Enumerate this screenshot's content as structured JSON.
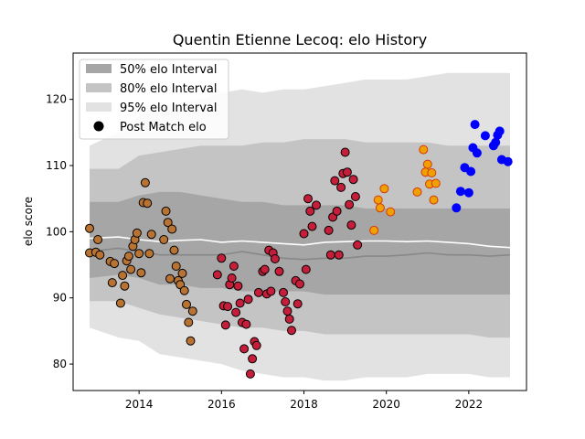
{
  "chart_data": {
    "type": "scatter",
    "title": "Quentin Etienne Lecoq: elo History",
    "xlabel": "",
    "ylabel": "elo score",
    "xlim": [
      2012.4,
      2023.4
    ],
    "ylim": [
      76,
      127
    ],
    "xticks": [
      2014,
      2016,
      2018,
      2020,
      2022
    ],
    "yticks": [
      80,
      90,
      100,
      110,
      120
    ],
    "legend": {
      "position": "top-left",
      "entries": [
        "50% elo Interval",
        "80% elo Interval",
        "95% elo Interval",
        "Post Match elo"
      ]
    },
    "colors": {
      "band50": "#a6a6a6",
      "band80": "#c4c4c4",
      "band95": "#e2e2e2",
      "median": "#888888",
      "mean": "#ffffff"
    },
    "bands": {
      "x": [
        2012.8,
        2013.5,
        2014.0,
        2014.5,
        2015.0,
        2015.5,
        2016.0,
        2016.5,
        2017.0,
        2017.5,
        2018.0,
        2018.5,
        2019.0,
        2019.5,
        2020.0,
        2020.5,
        2021.0,
        2021.5,
        2022.0,
        2022.5,
        2023.0
      ],
      "lo95": [
        85.5,
        84.0,
        83.5,
        81.5,
        81.0,
        80.5,
        80.0,
        79.0,
        78.5,
        78.0,
        78.0,
        77.5,
        77.5,
        78.0,
        78.0,
        78.0,
        78.5,
        78.5,
        78.5,
        78.0,
        78.0
      ],
      "hi95": [
        113.0,
        115.0,
        117.5,
        119.0,
        119.5,
        120.0,
        121.0,
        121.5,
        121.0,
        121.5,
        121.5,
        122.0,
        122.5,
        123.0,
        123.0,
        123.0,
        123.5,
        124.0,
        124.0,
        124.0,
        124.0
      ],
      "lo80": [
        89.5,
        89.5,
        88.5,
        87.5,
        87.0,
        86.5,
        86.0,
        85.5,
        85.5,
        85.0,
        85.0,
        84.5,
        84.5,
        84.5,
        84.5,
        84.5,
        84.5,
        84.5,
        84.5,
        84.0,
        84.0
      ],
      "hi80": [
        109.5,
        109.5,
        111.5,
        112.0,
        112.5,
        113.0,
        113.0,
        113.0,
        113.5,
        113.5,
        114.0,
        114.0,
        114.0,
        113.5,
        113.5,
        113.5,
        113.5,
        113.0,
        113.0,
        113.0,
        113.0
      ],
      "lo50": [
        93.0,
        93.5,
        93.0,
        92.0,
        92.0,
        91.5,
        91.5,
        91.0,
        91.0,
        91.0,
        91.0,
        90.5,
        90.5,
        90.5,
        90.5,
        90.5,
        90.5,
        90.5,
        90.5,
        90.5,
        90.5
      ],
      "hi50": [
        104.5,
        104.5,
        105.5,
        106.0,
        106.0,
        105.5,
        105.0,
        104.5,
        104.5,
        104.0,
        104.0,
        104.0,
        104.0,
        103.5,
        103.5,
        103.5,
        103.5,
        103.5,
        103.5,
        103.5,
        103.5
      ],
      "median": [
        97.0,
        97.5,
        97.0,
        96.5,
        96.5,
        96.5,
        96.5,
        97.0,
        96.5,
        96.0,
        95.8,
        96.0,
        96.0,
        96.3,
        96.3,
        96.5,
        96.8,
        96.5,
        96.5,
        96.3,
        96.5
      ],
      "mean": [
        99.0,
        99.2,
        98.8,
        98.5,
        98.7,
        98.8,
        98.4,
        98.6,
        98.4,
        98.2,
        98.0,
        98.4,
        98.5,
        98.6,
        98.6,
        98.5,
        98.6,
        98.4,
        98.2,
        97.8,
        97.6
      ]
    },
    "series": [
      {
        "color": "#b87333",
        "edge": "#000000",
        "x": [
          2012.8,
          2012.8,
          2012.95,
          2013.0,
          2013.05,
          2013.3,
          2013.35,
          2013.4,
          2013.55,
          2013.6,
          2013.65,
          2013.7,
          2013.75,
          2013.8,
          2013.85,
          2013.9,
          2013.95,
          2014.0,
          2014.05,
          2014.1,
          2014.15,
          2014.2,
          2014.25,
          2014.3,
          2014.6,
          2014.65,
          2014.7,
          2014.75,
          2014.8,
          2014.85,
          2014.9,
          2014.95,
          2015.0,
          2015.05,
          2015.1,
          2015.15,
          2015.2,
          2015.25,
          2015.3
        ],
        "y": [
          100.5,
          96.8,
          96.9,
          98.8,
          96.5,
          95.5,
          92.3,
          95.2,
          89.2,
          93.4,
          91.8,
          95.6,
          96.3,
          94.3,
          97.8,
          98.8,
          99.8,
          96.7,
          93.8,
          104.4,
          107.4,
          104.3,
          96.7,
          99.6,
          98.8,
          103.1,
          101.4,
          92.9,
          100.4,
          97.2,
          94.8,
          92.6,
          92.0,
          93.7,
          91.1,
          89.0,
          86.3,
          83.5,
          88.0
        ]
      },
      {
        "color": "#c41e3a",
        "edge": "#000000",
        "x": [
          2015.9,
          2016.0,
          2016.05,
          2016.1,
          2016.15,
          2016.2,
          2016.25,
          2016.3,
          2016.35,
          2016.4,
          2016.45,
          2016.5,
          2016.55,
          2016.6,
          2016.65,
          2016.7,
          2016.75,
          2016.8,
          2016.85,
          2016.9,
          2017.0,
          2017.05,
          2017.1,
          2017.15,
          2017.2,
          2017.25,
          2017.3,
          2017.4,
          2017.5,
          2017.55,
          2017.6,
          2017.65,
          2017.7,
          2017.8,
          2017.85,
          2017.9,
          2018.0,
          2018.05,
          2018.1,
          2018.15,
          2018.2,
          2018.3,
          2018.6,
          2018.65,
          2018.7,
          2018.75,
          2018.8,
          2018.85,
          2018.9,
          2018.95,
          2019.0,
          2019.05,
          2019.1,
          2019.15,
          2019.2,
          2019.25,
          2019.3
        ],
        "y": [
          93.5,
          96.0,
          88.8,
          85.9,
          88.7,
          92.0,
          93.0,
          94.8,
          87.8,
          91.8,
          89.2,
          86.3,
          82.3,
          86.0,
          89.8,
          78.5,
          80.8,
          83.4,
          82.8,
          90.8,
          94.0,
          94.3,
          90.6,
          97.2,
          91.0,
          96.8,
          95.9,
          94.0,
          90.8,
          89.4,
          88.0,
          86.8,
          85.1,
          92.6,
          89.1,
          92.1,
          99.7,
          94.3,
          105.0,
          103.1,
          100.8,
          104.0,
          100.2,
          96.5,
          102.2,
          107.7,
          103.1,
          96.5,
          106.7,
          108.8,
          112.0,
          109.0,
          104.1,
          101.0,
          107.9,
          105.3,
          98.0
        ]
      },
      {
        "color": "#f0a000",
        "edge": "#d4380d",
        "x": [
          2019.7,
          2019.8,
          2019.85,
          2019.95,
          2020.1,
          2020.75,
          2020.9,
          2020.95,
          2021.0,
          2021.05,
          2021.1,
          2021.15,
          2021.2
        ],
        "y": [
          100.2,
          104.8,
          103.6,
          106.5,
          103.0,
          106.0,
          112.4,
          109.0,
          110.2,
          107.2,
          108.9,
          104.8,
          107.3
        ]
      },
      {
        "color": "#0000ff",
        "edge": "#0000ff",
        "x": [
          2021.7,
          2021.8,
          2021.9,
          2022.0,
          2022.05,
          2022.1,
          2022.15,
          2022.2,
          2022.4,
          2022.6,
          2022.65,
          2022.7,
          2022.75,
          2022.8,
          2022.95
        ],
        "y": [
          103.6,
          106.1,
          109.7,
          105.9,
          109.1,
          112.7,
          116.2,
          111.9,
          114.5,
          113.0,
          113.5,
          114.6,
          115.2,
          110.9,
          110.6
        ]
      }
    ]
  }
}
